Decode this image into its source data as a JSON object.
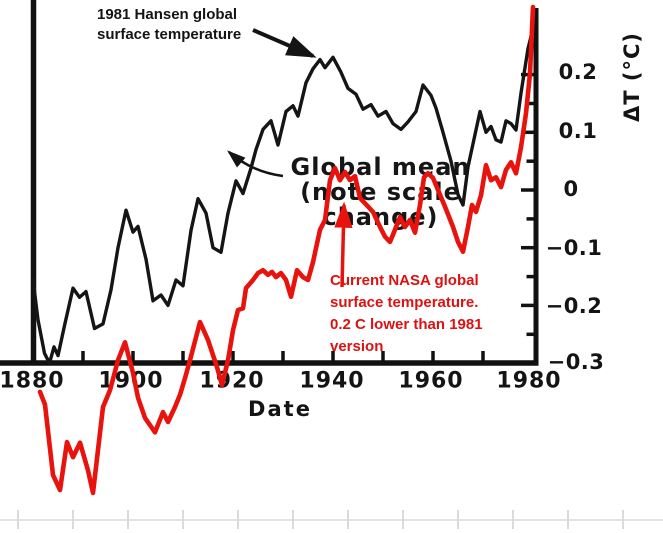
{
  "annotations": {
    "hansen": "1981 Hansen global\nsurface temperature",
    "global_mean": "Global mean\n(note scale\nchange)",
    "nasa": "Current NASA global\nsurface temperature.\n0.2 C  lower than 1981\nversion"
  },
  "colors": {
    "hansen_line": "#151515",
    "nasa_line": "#e8130c",
    "nasa_text": "#dd1111",
    "axis": "#111111",
    "ruler": "#e3e3e3"
  },
  "chart_data": {
    "type": "line",
    "title": "",
    "xlabel": "Date",
    "ylabel": "ΔT (°C)",
    "xlim": [
      1880,
      1980
    ],
    "ylim": [
      -0.3,
      0.25
    ],
    "x_tick_labels": [
      "1880",
      "1900",
      "1920",
      "1940",
      "1960",
      "1980"
    ],
    "y_tick_labels": [
      "0.2",
      "0.1",
      "0",
      "−0.1",
      "−0.2",
      "−0.3"
    ],
    "x_minor_tick_step_years": 10,
    "y_minor_tick_step": 0.05,
    "grid": false,
    "legend": "none (labeled by annotations with arrows)",
    "note": "Red series is plotted on a shifted scale and extends below the -0.3 axis floor (about 0.2 C lower than the black 1981 curve in the early record).",
    "series": [
      {
        "name": "1981 Hansen global surface temperature (Global mean)",
        "color": "#151515",
        "x": [
          1880,
          1881,
          1882.3,
          1883.3,
          1884.2,
          1885,
          1886.3,
          1888,
          1889.3,
          1890.6,
          1892.3,
          1894,
          1895.6,
          1897,
          1898.6,
          1900,
          1901,
          1902.6,
          1904,
          1905.6,
          1907,
          1908.6,
          1910,
          1911.6,
          1913,
          1914.6,
          1916,
          1917.6,
          1919,
          1920.6,
          1922,
          1923.6,
          1924.6,
          1926,
          1927.6,
          1929,
          1930.6,
          1932,
          1933,
          1934.6,
          1936,
          1937.4,
          1938.4,
          1940,
          1941.6,
          1943,
          1944.6,
          1946,
          1947.6,
          1949,
          1950.6,
          1952,
          1953.6,
          1955,
          1956.6,
          1958,
          1959.6,
          1960.6,
          1962,
          1963.6,
          1965,
          1966,
          1967,
          1968,
          1969.4,
          1970.6,
          1971.6,
          1972.6,
          1973.6,
          1974.6,
          1975.6,
          1976.6,
          1977.6,
          1979,
          1980
        ],
        "y": [
          -0.155,
          -0.225,
          -0.283,
          -0.3,
          -0.272,
          -0.287,
          -0.235,
          -0.17,
          -0.186,
          -0.176,
          -0.24,
          -0.232,
          -0.173,
          -0.1,
          -0.035,
          -0.073,
          -0.063,
          -0.12,
          -0.192,
          -0.182,
          -0.2,
          -0.156,
          -0.166,
          -0.07,
          -0.015,
          -0.04,
          -0.1,
          -0.108,
          -0.04,
          0.016,
          -0.006,
          0.038,
          0.07,
          0.105,
          0.12,
          0.078,
          0.136,
          0.146,
          0.128,
          0.186,
          0.21,
          0.226,
          0.212,
          0.23,
          0.204,
          0.176,
          0.166,
          0.14,
          0.148,
          0.128,
          0.136,
          0.115,
          0.105,
          0.118,
          0.136,
          0.182,
          0.164,
          0.142,
          0.1,
          0.05,
          -0.008,
          -0.026,
          0.04,
          0.08,
          0.136,
          0.1,
          0.11,
          0.087,
          0.083,
          0.12,
          0.115,
          0.104,
          0.168,
          0.245,
          0.28
        ]
      },
      {
        "name": "Current NASA global surface temperature",
        "color": "#e8130c",
        "x": [
          1881.4,
          1882.4,
          1884,
          1885.4,
          1886.8,
          1888,
          1889.4,
          1891,
          1892,
          1894,
          1895.4,
          1897,
          1898.4,
          1900,
          1901,
          1902.4,
          1904.4,
          1906,
          1907,
          1908.4,
          1909.4,
          1910.4,
          1911.4,
          1913.4,
          1915,
          1916.8,
          1917.8,
          1919,
          1920,
          1921,
          1922,
          1922.6,
          1924,
          1925,
          1926,
          1927,
          1927.8,
          1928.6,
          1929.6,
          1930.6,
          1931.6,
          1932.8,
          1934,
          1935,
          1936,
          1937.4,
          1938.4,
          1939.4,
          1940.4,
          1941.4,
          1942.4,
          1943.4,
          1944.4,
          1945.4,
          1946.4,
          1948,
          1949.4,
          1950.4,
          1951.4,
          1952.4,
          1953.4,
          1954.4,
          1955.4,
          1956.4,
          1957.4,
          1958.2,
          1959,
          1960,
          1961,
          1962.4,
          1964,
          1965,
          1966,
          1967,
          1967.8,
          1968.6,
          1969.6,
          1970.6,
          1971.6,
          1972.6,
          1973.6,
          1974.6,
          1975.6,
          1976.6,
          1977.6,
          1978.6,
          1979.4,
          1980
        ],
        "y": [
          -0.35,
          -0.372,
          -0.494,
          -0.52,
          -0.437,
          -0.463,
          -0.438,
          -0.486,
          -0.525,
          -0.376,
          -0.347,
          -0.295,
          -0.264,
          -0.317,
          -0.36,
          -0.395,
          -0.42,
          -0.385,
          -0.402,
          -0.376,
          -0.355,
          -0.326,
          -0.295,
          -0.229,
          -0.26,
          -0.307,
          -0.338,
          -0.295,
          -0.243,
          -0.208,
          -0.205,
          -0.17,
          -0.156,
          -0.144,
          -0.139,
          -0.147,
          -0.142,
          -0.151,
          -0.144,
          -0.156,
          -0.185,
          -0.139,
          -0.151,
          -0.156,
          -0.125,
          -0.069,
          -0.052,
          0.017,
          0.038,
          0.017,
          0.031,
          0.017,
          0.024,
          -0.014,
          -0.023,
          -0.038,
          -0.064,
          -0.081,
          -0.09,
          -0.069,
          -0.047,
          -0.064,
          -0.052,
          -0.074,
          -0.026,
          0.022,
          0.029,
          0.021,
          0.0,
          -0.029,
          -0.064,
          -0.09,
          -0.107,
          -0.064,
          -0.026,
          -0.038,
          -0.009,
          0.043,
          0.017,
          0.022,
          0.005,
          0.035,
          0.048,
          0.029,
          0.074,
          0.133,
          0.202,
          0.317
        ]
      }
    ]
  }
}
